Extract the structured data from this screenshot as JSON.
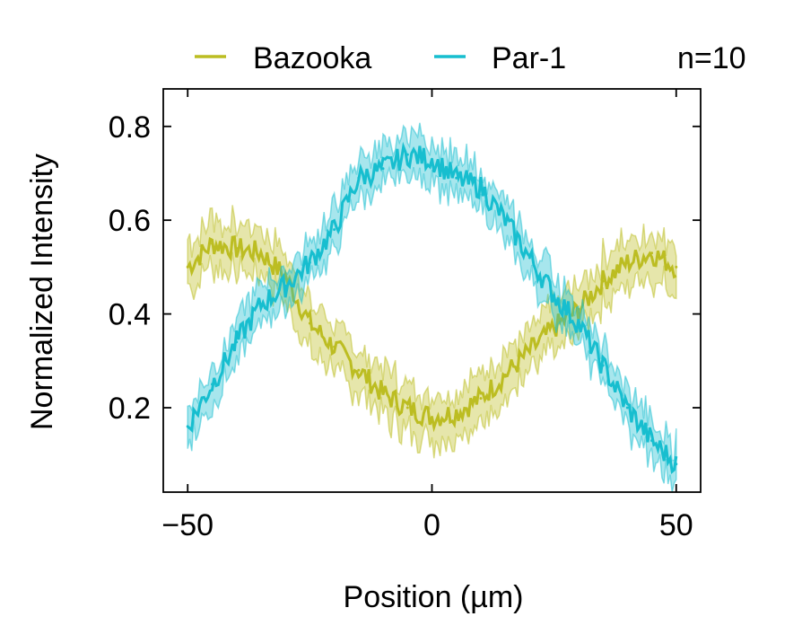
{
  "chart_data": {
    "type": "line",
    "xlabel": "Position (µm)",
    "ylabel": "Normalized Intensity",
    "xlim": [
      -55,
      55
    ],
    "ylim": [
      0.02,
      0.88
    ],
    "x_ticks": [
      -50,
      0,
      50
    ],
    "x_tick_labels": [
      "−50",
      "0",
      "50"
    ],
    "y_ticks": [
      0.2,
      0.4,
      0.6,
      0.8
    ],
    "y_tick_labels": [
      "0.2",
      "0.4",
      "0.6",
      "0.8"
    ],
    "legend_position": "top",
    "annotation": "n=10",
    "series": [
      {
        "name": "Bazooka",
        "color": "#bcbd22",
        "x": [
          -50,
          -45,
          -40,
          -35,
          -30,
          -25,
          -20,
          -15,
          -10,
          -5,
          0,
          5,
          10,
          15,
          20,
          25,
          30,
          35,
          40,
          45,
          50
        ],
        "y": [
          0.5,
          0.55,
          0.54,
          0.53,
          0.48,
          0.38,
          0.33,
          0.28,
          0.23,
          0.2,
          0.18,
          0.19,
          0.22,
          0.27,
          0.32,
          0.37,
          0.41,
          0.47,
          0.51,
          0.53,
          0.5
        ],
        "band": 0.05
      },
      {
        "name": "Par-1",
        "color": "#17becf",
        "x": [
          -50,
          -45,
          -40,
          -35,
          -30,
          -25,
          -20,
          -15,
          -10,
          -5,
          0,
          5,
          10,
          15,
          20,
          25,
          30,
          35,
          40,
          45,
          50
        ],
        "y": [
          0.16,
          0.25,
          0.34,
          0.42,
          0.46,
          0.51,
          0.58,
          0.69,
          0.71,
          0.74,
          0.73,
          0.69,
          0.67,
          0.6,
          0.52,
          0.44,
          0.38,
          0.29,
          0.2,
          0.13,
          0.08
        ],
        "band": 0.04
      }
    ]
  }
}
